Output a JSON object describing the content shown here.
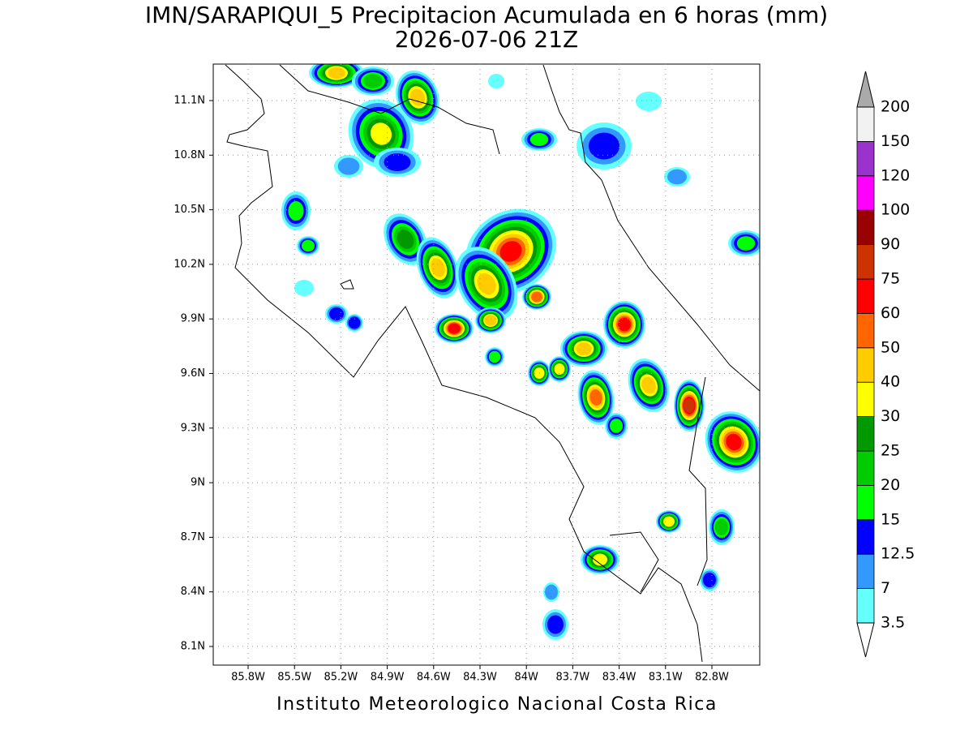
{
  "map": {
    "title": "IMN/SARAPIQUI_5 Precipitacion Acumulada en 6 horas (mm)",
    "subtitle": "2026-07-06 21Z",
    "footer": "Instituto Meteorologico Nacional Costa Rica",
    "xticks": [
      "85.8W",
      "85.5W",
      "85.2W",
      "84.9W",
      "84.6W",
      "84.3W",
      "84W",
      "83.7W",
      "83.4W",
      "83.1W",
      "82.8W"
    ],
    "yticks": [
      "11.1N",
      "10.8N",
      "10.5N",
      "10.2N",
      "9.9N",
      "9.6N",
      "9.3N",
      "9N",
      "8.7N",
      "8.4N",
      "8.1N"
    ],
    "colorbar": {
      "levels": [
        3.5,
        7,
        12.5,
        15,
        20,
        25,
        30,
        40,
        50,
        60,
        75,
        90,
        100,
        120,
        150,
        200
      ],
      "colors": [
        "#66ffff",
        "#3399ff",
        "#0000ff",
        "#00ff00",
        "#00cc00",
        "#009900",
        "#ffff00",
        "#ffcc00",
        "#ff6600",
        "#ff0000",
        "#cc3300",
        "#990000",
        "#ff00ff",
        "#9933cc",
        "#f2f2f2"
      ],
      "over_color": "#aaaaaa",
      "under_color": "#ffffff"
    }
  }
}
